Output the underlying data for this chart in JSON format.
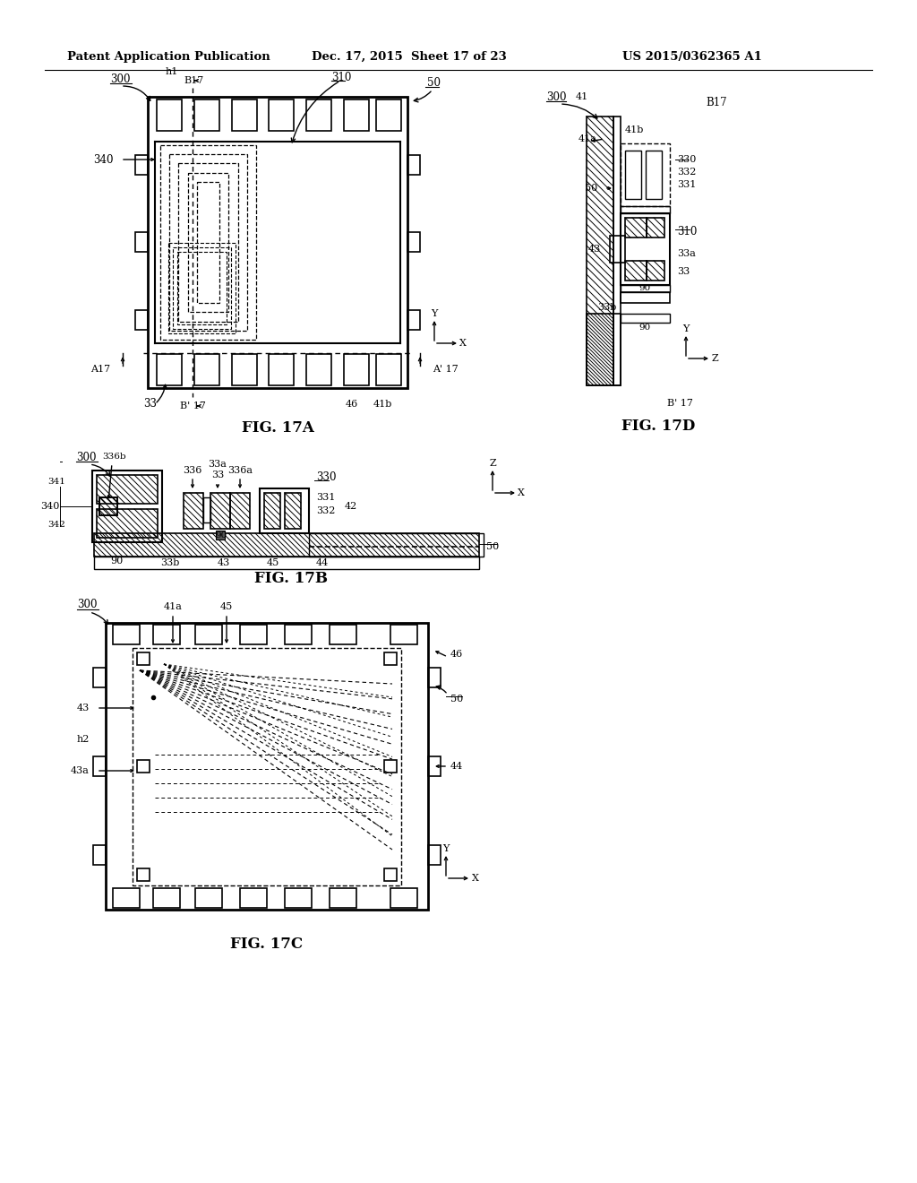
{
  "header_left": "Patent Application Publication",
  "header_mid": "Dec. 17, 2015  Sheet 17 of 23",
  "header_right": "US 2015/0362365 A1",
  "fig_labels": [
    "FIG. 17A",
    "FIG. 17B",
    "FIG. 17C",
    "FIG. 17D"
  ],
  "bg": "#ffffff",
  "lc": "#000000"
}
